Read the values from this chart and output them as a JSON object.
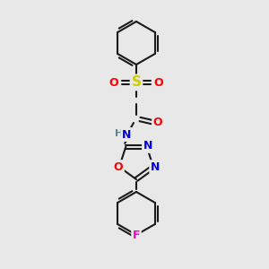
{
  "background_color": "#e8e8e8",
  "bond_color": "#1a1a1a",
  "atom_colors": {
    "S": "#cccc00",
    "O": "#ff0000",
    "N": "#0000ee",
    "F": "#ff00cc",
    "H": "#558888",
    "C": "#1a1a1a"
  },
  "figsize": [
    3.0,
    3.0
  ],
  "dpi": 100,
  "lw": 1.5
}
